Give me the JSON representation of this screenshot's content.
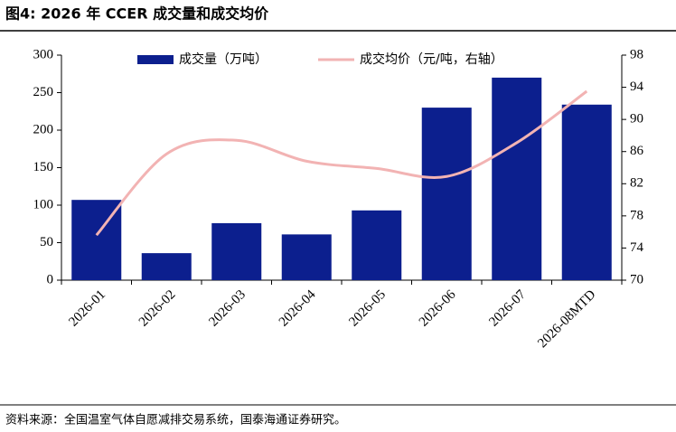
{
  "chart_data": {
    "type": "bar",
    "title": "图4:  2026 年 CCER 成交量和成交均价",
    "source": "资料来源：全国温室气体自愿减排交易系统，国泰海通证券研究。",
    "categories": [
      "2026-01",
      "2026-02",
      "2026-03",
      "2026-04",
      "2026-05",
      "2026-06",
      "2026-07",
      "2026-08MTD"
    ],
    "series": [
      {
        "name": "成交量（万吨）",
        "type": "bar",
        "color": "#0c1f8e",
        "values": [
          107,
          36,
          76,
          61,
          93,
          230,
          270,
          234
        ]
      },
      {
        "name": "成交均价（元/吨，右轴）",
        "type": "line",
        "axis": "y2",
        "color": "#f2b3b3",
        "values": [
          75.6,
          85.7,
          87.4,
          84.8,
          83.9,
          82.9,
          87.1,
          93.5
        ]
      }
    ],
    "ylim": [
      0,
      300
    ],
    "yticks": [
      0,
      50,
      100,
      150,
      200,
      250,
      300
    ],
    "y2lim": [
      70,
      98
    ],
    "y2ticks": [
      70,
      74,
      78,
      82,
      86,
      90,
      94,
      98
    ],
    "legend": "top"
  }
}
